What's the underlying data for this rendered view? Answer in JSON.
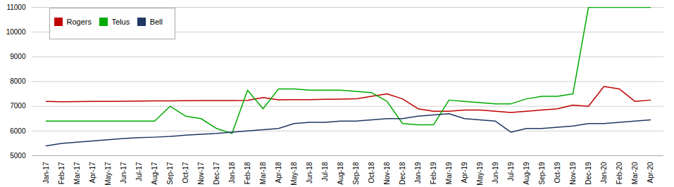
{
  "chart_data": {
    "type": "line",
    "categories": [
      "Jan-17",
      "Feb-17",
      "Mar-17",
      "Apr-17",
      "May-17",
      "Jun-17",
      "Jul-17",
      "Aug-17",
      "Sep-17",
      "Oct-17",
      "Nov-17",
      "Dec-17",
      "Jan-18",
      "Feb-18",
      "Mar-18",
      "Apr-18",
      "May-18",
      "Jun-18",
      "Jul-18",
      "Aug-18",
      "Sep-18",
      "Oct-18",
      "Nov-18",
      "Dec-18",
      "Jan-19",
      "Feb-19",
      "Mar-19",
      "Apr-19",
      "May-19",
      "Jun-19",
      "Jul-19",
      "Aug-19",
      "Sep-19",
      "Oct-19",
      "Nov-19",
      "Dec-19",
      "Jan-20",
      "Feb-20",
      "Mar-20",
      "Apr-20"
    ],
    "series": [
      {
        "name": "Rogers",
        "color": "#C00000",
        "values": [
          7200,
          7180,
          7190,
          7200,
          7200,
          7205,
          7210,
          7215,
          7220,
          7225,
          7230,
          7230,
          7235,
          7240,
          7350,
          7260,
          7270,
          7270,
          7280,
          7290,
          7300,
          7400,
          7500,
          7300,
          6900,
          6800,
          6800,
          6850,
          6850,
          6800,
          6750,
          6800,
          6850,
          6900,
          7050,
          7000,
          7800,
          7700,
          7200,
          7250
        ]
      },
      {
        "name": "Telus",
        "color": "#00AA00",
        "values": [
          6400,
          6400,
          6400,
          6400,
          6400,
          6400,
          6400,
          6400,
          7000,
          6600,
          6500,
          6100,
          5900,
          7650,
          6900,
          7700,
          7700,
          7650,
          7650,
          7650,
          7600,
          7550,
          7200,
          6300,
          6250,
          6250,
          7250,
          7200,
          7150,
          7100,
          7100,
          7300,
          7400,
          7400,
          7500,
          11000,
          11000,
          11000,
          11000,
          11000
        ]
      },
      {
        "name": "Bell",
        "color": "#1F3864",
        "values": [
          5400,
          5500,
          5550,
          5600,
          5650,
          5700,
          5730,
          5750,
          5780,
          5830,
          5870,
          5900,
          5950,
          6000,
          6050,
          6100,
          6300,
          6350,
          6350,
          6400,
          6400,
          6450,
          6500,
          6500,
          6600,
          6650,
          6700,
          6500,
          6450,
          6400,
          5950,
          6100,
          6100,
          6150,
          6200,
          6300,
          6300,
          6350,
          6400,
          6450
        ]
      }
    ],
    "ylim": [
      5000,
      11000
    ],
    "yticks": [
      5000,
      6000,
      7000,
      8000,
      9000,
      10000,
      11000
    ],
    "grid": true,
    "legend": "upper left"
  }
}
